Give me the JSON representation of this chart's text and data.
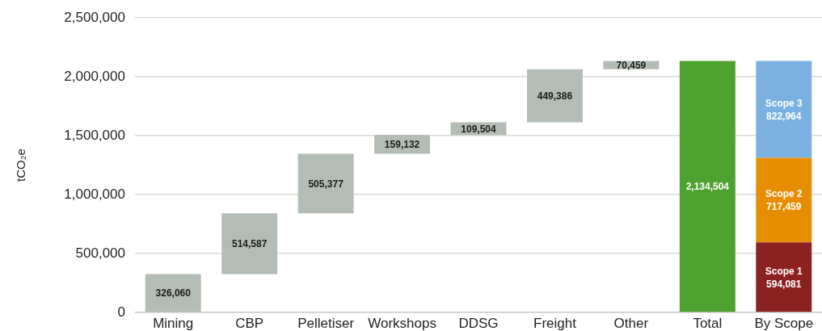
{
  "chart_data": {
    "type": "bar",
    "ylabel": "tCO₂e",
    "categories": [
      "Mining",
      "CBP",
      "Pelletiser",
      "Workshops",
      "DDSG",
      "Freight",
      "Other",
      "Total",
      "By Scope"
    ],
    "ylim": [
      0,
      2500000
    ],
    "yticks": [
      0,
      {
        "value": 500000,
        "label": "500,000"
      },
      {
        "value": 1000000,
        "label": "1,000,000"
      },
      {
        "value": 1500000,
        "label": "1,500,000"
      },
      {
        "value": 2000000,
        "label": "2,000,000"
      },
      {
        "value": 2500000,
        "label": "2,500,000"
      }
    ],
    "grid": "y",
    "stacked": true,
    "series": [
      {
        "colors": [
          "#b4bdb5",
          "#b4bdb5",
          "#b4bdb5",
          "#b4bdb5",
          "#b4bdb5",
          "#b4bdb5",
          "#b4bdb5",
          "#4ea22f",
          null
        ],
        "values": [
          326060,
          514587,
          505377,
          159132,
          109504,
          449386,
          70459,
          2134504,
          null
        ],
        "base": [
          0,
          326060,
          840647,
          1346024,
          1505156,
          1614660,
          2064046,
          0,
          null
        ],
        "value_labels": [
          "326,060",
          "514,587",
          "505,377",
          "159,132",
          "109,504",
          "449,386",
          "70,459",
          "2,134,504",
          null
        ]
      },
      {
        "name": "Scope 1",
        "color": "#8b2121",
        "values": [
          null,
          null,
          null,
          null,
          null,
          null,
          null,
          null,
          594081
        ],
        "value_labels": [
          null,
          null,
          null,
          null,
          null,
          null,
          null,
          null,
          "594,081"
        ]
      },
      {
        "name": "Scope 2",
        "color": "#e68e00",
        "values": [
          null,
          null,
          null,
          null,
          null,
          null,
          null,
          null,
          717459
        ],
        "value_labels": [
          null,
          null,
          null,
          null,
          null,
          null,
          null,
          null,
          "717,459"
        ]
      },
      {
        "name": "Scope 3",
        "color": "#7ab1e0",
        "values": [
          null,
          null,
          null,
          null,
          null,
          null,
          null,
          null,
          822964
        ],
        "value_labels": [
          null,
          null,
          null,
          null,
          null,
          null,
          null,
          null,
          "822,964"
        ]
      }
    ]
  }
}
